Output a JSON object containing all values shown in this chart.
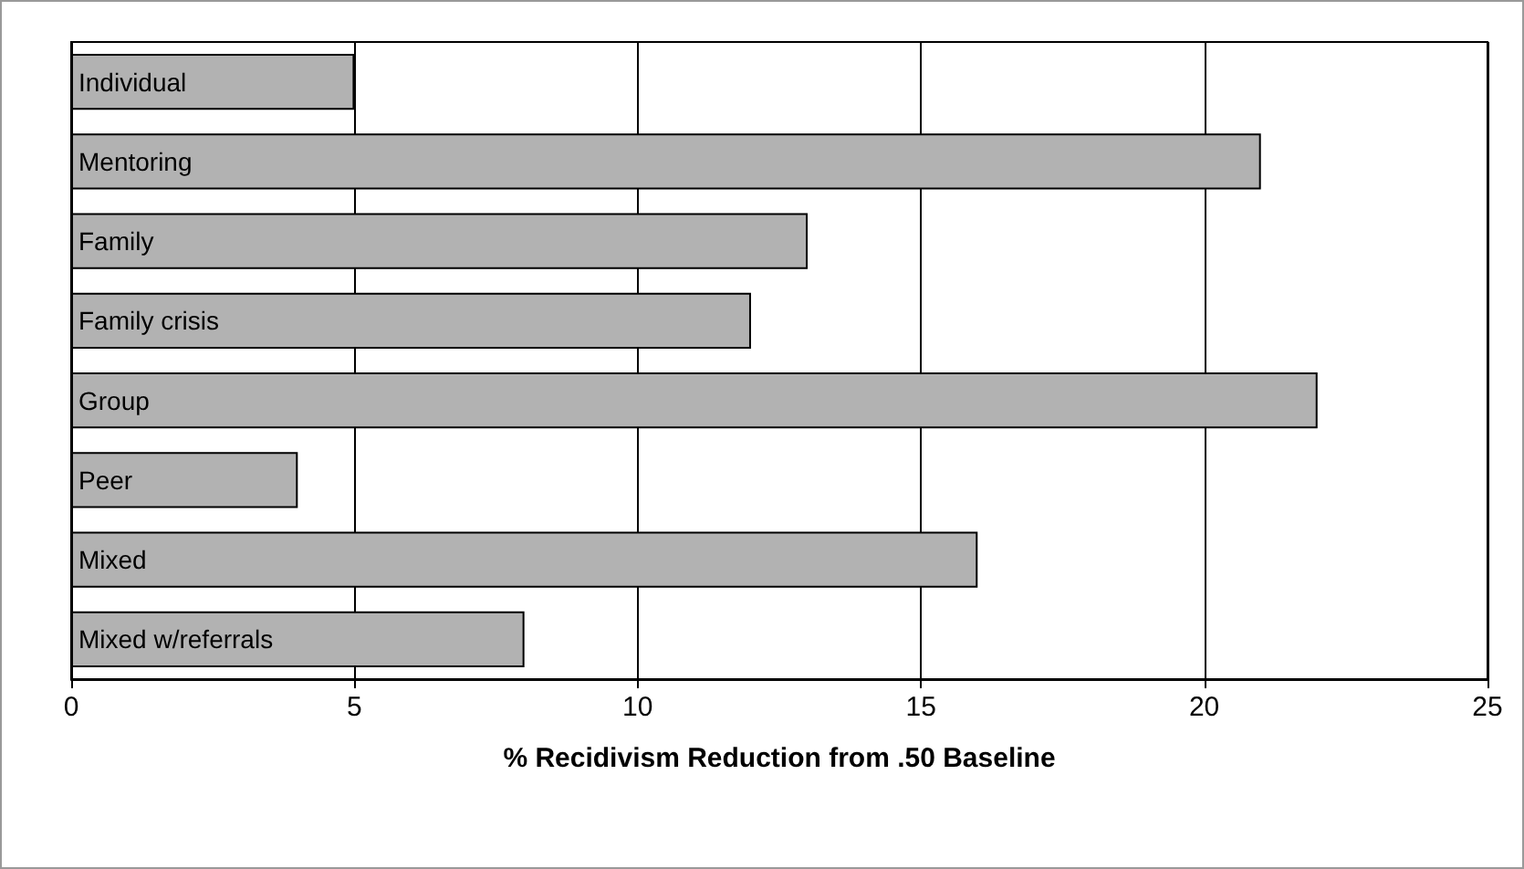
{
  "chart_data": {
    "type": "bar",
    "orientation": "horizontal",
    "xlabel": "% Recidivism Reduction from .50 Baseline",
    "categories": [
      "Individual",
      "Mentoring",
      "Family",
      "Family crisis",
      "Group",
      "Peer",
      "Mixed",
      "Mixed w/referrals"
    ],
    "values": [
      5,
      21,
      13,
      12,
      22,
      4,
      16,
      8
    ],
    "color": "#b2b2b2",
    "xlim": [
      0,
      25
    ],
    "xticks": [
      0,
      5,
      10,
      15,
      20,
      25
    ],
    "grid": "x"
  }
}
